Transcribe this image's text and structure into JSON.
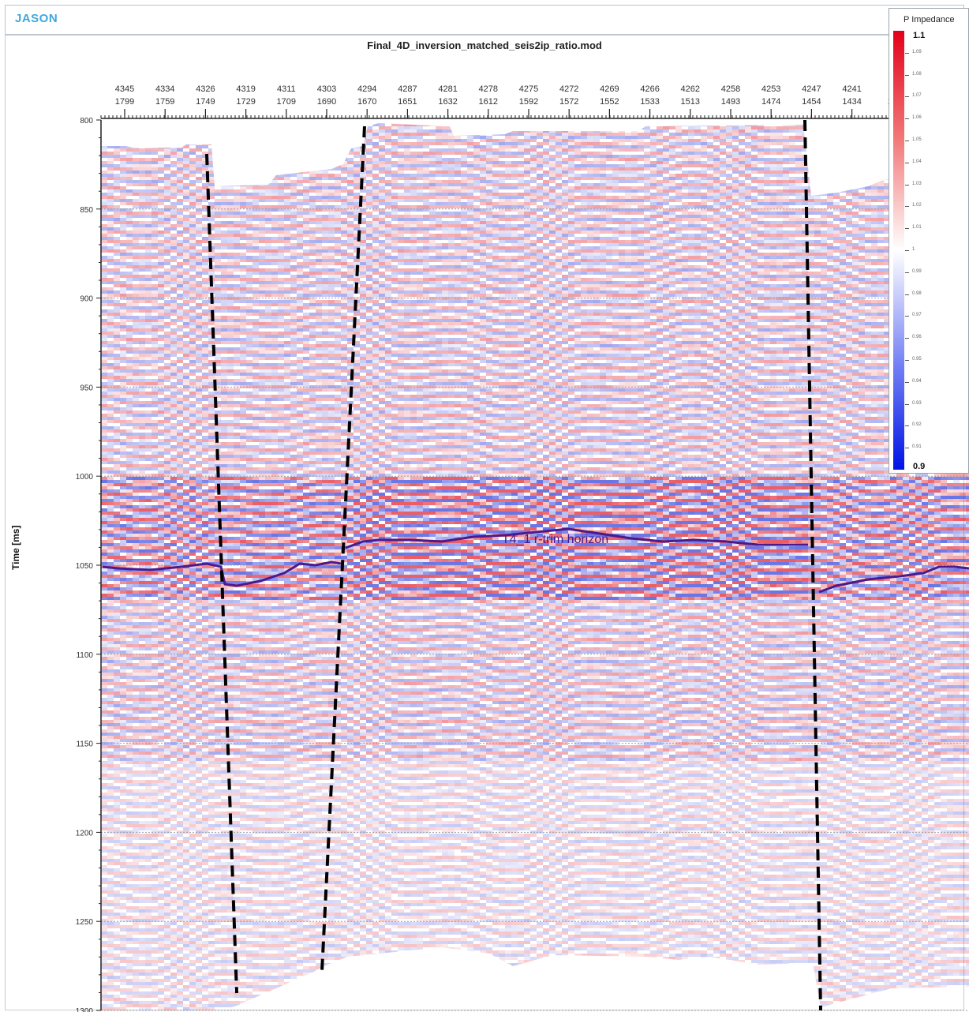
{
  "app": {
    "logo": "JASON"
  },
  "chart_data": {
    "type": "heatmap",
    "title": "Final_4D_inversion_matched_seis2ip_ratio.mod",
    "ylabel": "Time [ms]",
    "ylim": [
      800,
      1300
    ],
    "y_ticks": [
      800,
      850,
      900,
      950,
      1000,
      1050,
      1100,
      1150,
      1200,
      1250,
      1300
    ],
    "x_ticks_row1": [
      "4345",
      "4334",
      "4326",
      "4319",
      "4311",
      "4303",
      "4294",
      "4287",
      "4281",
      "4278",
      "4275",
      "4272",
      "4269",
      "4266",
      "4262",
      "4258",
      "4253",
      "4247",
      "4241",
      "4"
    ],
    "x_ticks_row2": [
      "1799",
      "1759",
      "1749",
      "1729",
      "1709",
      "1690",
      "1670",
      "1651",
      "1632",
      "1612",
      "1592",
      "1572",
      "1552",
      "1533",
      "1513",
      "1493",
      "1474",
      "1454",
      "1434",
      "14"
    ],
    "horizon_label": "T4_1 r-trim horizon",
    "colorbar": {
      "title": "P Impedance",
      "max": "1.1",
      "min": "0.9",
      "ticks": [
        "1.09",
        "1.08",
        "1.07",
        "1.06",
        "1.05",
        "1.04",
        "1.03",
        "1.02",
        "1.01",
        "1",
        "0.99",
        "0.98",
        "0.97",
        "0.96",
        "0.95",
        "0.94",
        "0.93",
        "0.92",
        "0.91"
      ],
      "color_high": "#e3001a",
      "color_mid": "#ffffff",
      "color_low": "#0012e6"
    },
    "horizon_color": "#4b1a8c",
    "fault_color": "#000000",
    "grid": true
  }
}
